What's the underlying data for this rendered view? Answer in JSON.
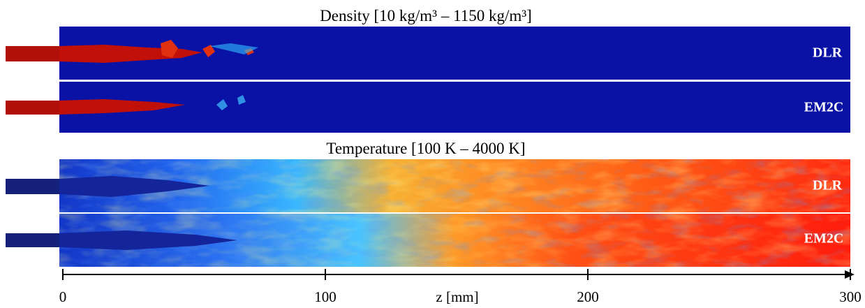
{
  "density": {
    "title": "Density [10 kg/m³ – 1150 kg/m³]",
    "panels": [
      "DLR",
      "EM2C"
    ]
  },
  "temperature": {
    "title": "Temperature [100 K – 4000 K]",
    "panels": [
      "DLR",
      "EM2C"
    ]
  },
  "axis": {
    "label": "z [mm]",
    "xlim": [
      0,
      300
    ],
    "xticks": [
      0,
      100,
      200,
      300
    ]
  }
}
